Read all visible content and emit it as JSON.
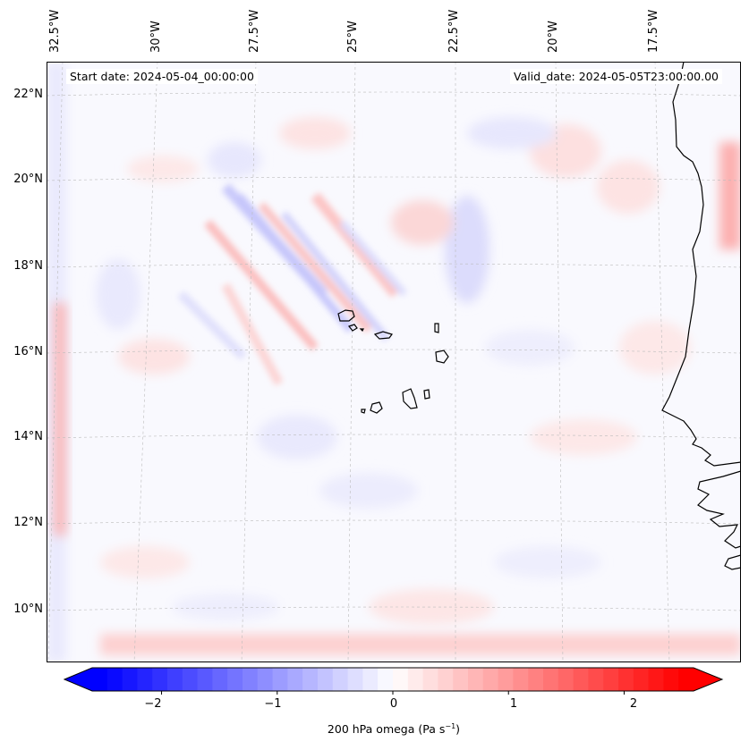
{
  "map": {
    "start_date": "Start date: 2024-05-04_00:00:00",
    "valid_date": "Valid_date: 2024-05-05T23:00:00.00",
    "lon_ticks": [
      "32.5°W",
      "30°W",
      "27.5°W",
      "25°W",
      "22.5°W",
      "20°W",
      "17.5°W"
    ],
    "lat_ticks": [
      "22°N",
      "20°N",
      "18°N",
      "16°N",
      "14°N",
      "12°N",
      "10°N"
    ],
    "gridlines": true,
    "features": [
      "Cape Verde islands",
      "West African coastline"
    ]
  },
  "colorbar": {
    "ticks": [
      "−2",
      "−1",
      "0",
      "1",
      "2"
    ],
    "tick_values": [
      -2,
      -1,
      0,
      1,
      2
    ],
    "range": [
      -2.6,
      2.6
    ],
    "label_text": "200 hPa omega (Pa s",
    "label_exp": "−1",
    "label_close": ")",
    "colors": {
      "negative": "#0000ff",
      "zero": "#ffffff",
      "positive": "#ff0000"
    }
  }
}
